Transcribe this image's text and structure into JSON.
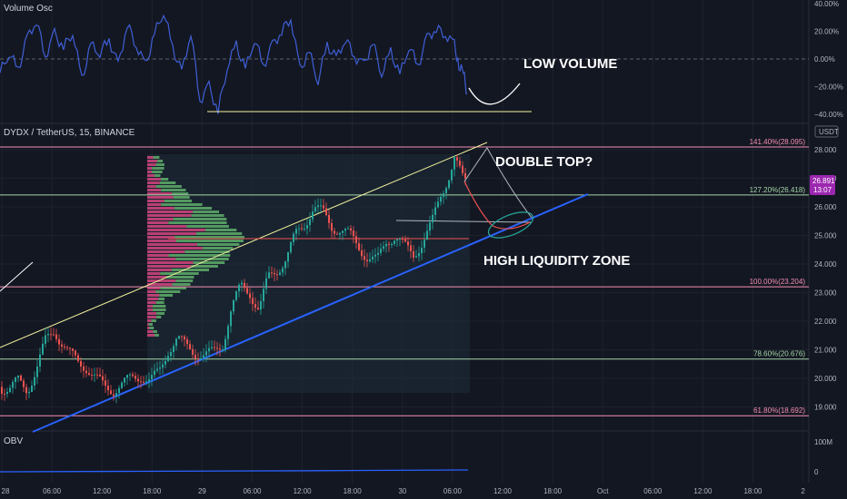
{
  "volume_osc": {
    "title": "Volume Osc",
    "ticks": [
      "40.00%",
      "20.00%",
      "0.00%",
      "−20.00%",
      "−40.00%"
    ],
    "tick_values": [
      40,
      20,
      0,
      -20,
      -40
    ],
    "annotation": "LOW VOLUME"
  },
  "main": {
    "title": "DYDX / TetherUS, 15, BINANCE",
    "currency": "USDT",
    "price_ticks": [
      "28.000",
      "27.000",
      "26.000",
      "25.000",
      "24.000",
      "23.000",
      "22.000",
      "21.000",
      "20.000",
      "19.000"
    ],
    "price_tick_values": [
      28,
      27,
      26,
      25,
      24,
      23,
      22,
      21,
      20,
      19
    ],
    "last_price": "26.891",
    "countdown": "13:07",
    "annotation_top": "DOUBLE TOP?",
    "annotation_zone": "HIGH LIQUIDITY ZONE",
    "fib_levels": [
      {
        "label": "141.40%(28.095)",
        "value": 28.095,
        "color": "#f48fb1"
      },
      {
        "label": "127.20%(26.418)",
        "value": 26.418,
        "color": "#a5d6a7"
      },
      {
        "label": "100.00%(23.204)",
        "value": 23.204,
        "color": "#f48fb1"
      },
      {
        "label": "78.60%(20.676)",
        "value": 20.676,
        "color": "#a5d6a7"
      },
      {
        "label": "61.80%(18.692)",
        "value": 18.692,
        "color": "#f48fb1"
      }
    ]
  },
  "obv": {
    "title": "OBV",
    "ticks": [
      "100M",
      "0"
    ]
  },
  "time_axis": {
    "labels": [
      "28",
      "06:00",
      "12:00",
      "18:00",
      "29",
      "06:00",
      "12:00",
      "18:00",
      "30",
      "06:00",
      "12:00",
      "18:00",
      "Oct",
      "06:00",
      "12:00",
      "18:00",
      "2"
    ]
  },
  "colors": {
    "up": "#26a69a",
    "down": "#ef5350",
    "osc": "#3f5fd6",
    "trend": "#2962ff",
    "upper": "#f3f29c",
    "vp_up": "#5fae6a",
    "vp_down": "#d6457f"
  },
  "chart_data": {
    "type": "candlestick",
    "symbol": "DYDX / TetherUS",
    "interval": "15",
    "exchange": "BINANCE",
    "price_range": [
      18.4,
      29.0
    ],
    "price_path": [
      [
        0,
        19.7
      ],
      [
        10,
        19.6
      ],
      [
        20,
        19.9
      ],
      [
        30,
        19.6
      ],
      [
        40,
        20.3
      ],
      [
        50,
        21.3
      ],
      [
        60,
        21.7
      ],
      [
        65,
        21.4
      ],
      [
        75,
        20.9
      ],
      [
        85,
        20.6
      ],
      [
        95,
        20.4
      ],
      [
        105,
        20.0
      ],
      [
        115,
        19.7
      ],
      [
        125,
        19.6
      ],
      [
        135,
        19.8
      ],
      [
        145,
        20.0
      ],
      [
        155,
        20.1
      ],
      [
        165,
        19.9
      ],
      [
        175,
        20.2
      ],
      [
        185,
        21.0
      ],
      [
        195,
        21.4
      ],
      [
        205,
        21.1
      ],
      [
        215,
        20.9
      ],
      [
        225,
        20.8
      ],
      [
        235,
        20.9
      ],
      [
        245,
        21.2
      ],
      [
        255,
        22.5
      ],
      [
        265,
        23.2
      ],
      [
        275,
        23.0
      ],
      [
        285,
        22.4
      ],
      [
        295,
        23.5
      ],
      [
        305,
        23.8
      ],
      [
        315,
        24.2
      ],
      [
        325,
        25.0
      ],
      [
        335,
        25.4
      ],
      [
        345,
        26.0
      ],
      [
        355,
        25.8
      ],
      [
        365,
        25.3
      ],
      [
        375,
        25.2
      ],
      [
        385,
        25.0
      ],
      [
        395,
        24.6
      ],
      [
        405,
        24.2
      ],
      [
        415,
        24.1
      ],
      [
        425,
        24.8
      ],
      [
        435,
        25.0
      ],
      [
        445,
        24.6
      ],
      [
        455,
        24.3
      ],
      [
        465,
        24.8
      ],
      [
        475,
        25.4
      ],
      [
        485,
        26.4
      ],
      [
        495,
        27.2
      ],
      [
        500,
        27.7
      ],
      [
        505,
        27.3
      ],
      [
        510,
        26.9
      ],
      [
        514,
        26.89
      ]
    ],
    "osc_path": [
      [
        0,
        -10
      ],
      [
        10,
        5
      ],
      [
        20,
        -8
      ],
      [
        30,
        15
      ],
      [
        40,
        28
      ],
      [
        50,
        2
      ],
      [
        60,
        18
      ],
      [
        70,
        8
      ],
      [
        80,
        20
      ],
      [
        90,
        -15
      ],
      [
        100,
        10
      ],
      [
        110,
        5
      ],
      [
        120,
        14
      ],
      [
        130,
        -5
      ],
      [
        140,
        25
      ],
      [
        150,
        10
      ],
      [
        160,
        -5
      ],
      [
        170,
        18
      ],
      [
        180,
        35
      ],
      [
        190,
        8
      ],
      [
        200,
        -10
      ],
      [
        210,
        20
      ],
      [
        220,
        -30
      ],
      [
        230,
        -20
      ],
      [
        240,
        -38
      ],
      [
        250,
        -5
      ],
      [
        260,
        10
      ],
      [
        270,
        -8
      ],
      [
        280,
        15
      ],
      [
        290,
        -5
      ],
      [
        300,
        10
      ],
      [
        310,
        20
      ],
      [
        320,
        30
      ],
      [
        330,
        -8
      ],
      [
        340,
        5
      ],
      [
        350,
        -15
      ],
      [
        360,
        10
      ],
      [
        370,
        0
      ],
      [
        380,
        15
      ],
      [
        390,
        2
      ],
      [
        400,
        -5
      ],
      [
        410,
        12
      ],
      [
        420,
        -10
      ],
      [
        430,
        5
      ],
      [
        440,
        -12
      ],
      [
        450,
        10
      ],
      [
        460,
        -5
      ],
      [
        470,
        15
      ],
      [
        480,
        22
      ],
      [
        490,
        18
      ],
      [
        500,
        10
      ],
      [
        505,
        -5
      ],
      [
        510,
        -10
      ],
      [
        514,
        -25
      ]
    ]
  }
}
